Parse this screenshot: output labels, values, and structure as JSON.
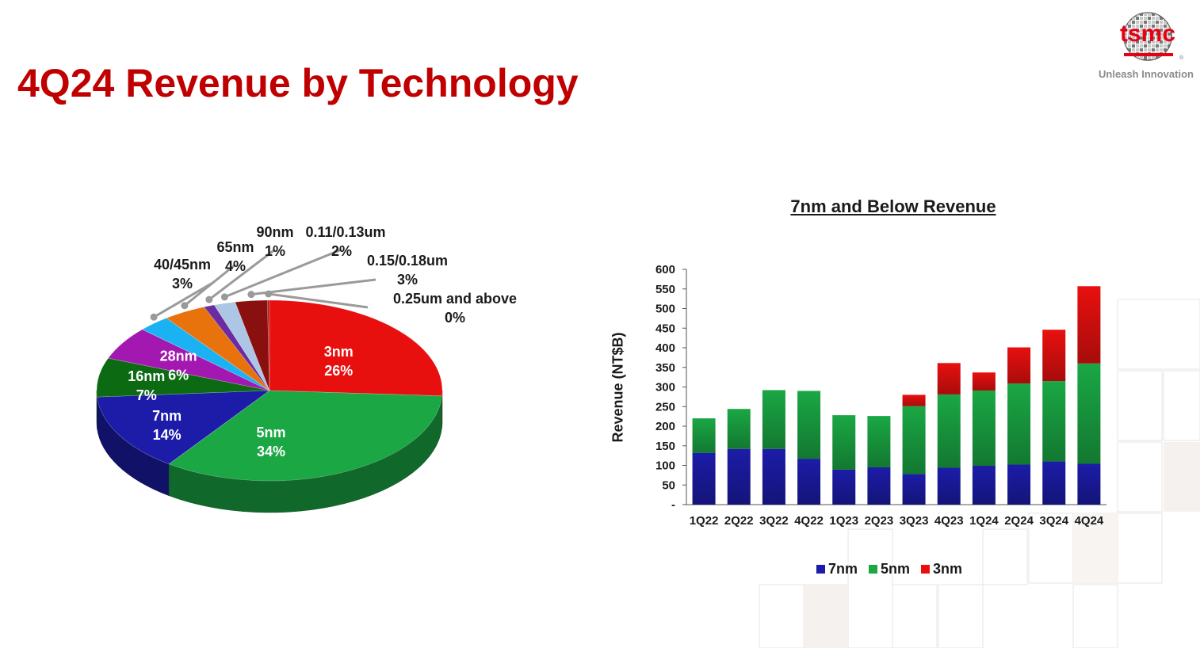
{
  "page": {
    "title": "4Q24 Revenue by Technology"
  },
  "logo": {
    "wordmark": "tsmc",
    "tagline": "Unleash Innovation",
    "color": "#e60012"
  },
  "chart_data": [
    {
      "type": "pie",
      "slices": [
        {
          "name": "3nm",
          "value": 26,
          "label": "26%",
          "color": "#e8100f"
        },
        {
          "name": "5nm",
          "value": 34,
          "label": "34%",
          "color": "#1aa744"
        },
        {
          "name": "7nm",
          "value": 14,
          "label": "14%",
          "color": "#1c1ca8"
        },
        {
          "name": "16nm",
          "value": 7,
          "label": "7%",
          "color": "#0b6a12"
        },
        {
          "name": "28nm",
          "value": 6,
          "label": "6%",
          "color": "#a318b0"
        },
        {
          "name": "40/45nm",
          "value": 3,
          "label": "3%",
          "color": "#1ab2f2"
        },
        {
          "name": "65nm",
          "value": 4,
          "label": "4%",
          "color": "#e8730c"
        },
        {
          "name": "90nm",
          "value": 1,
          "label": "1%",
          "color": "#6a2ca0"
        },
        {
          "name": "0.11/0.13um",
          "value": 2,
          "label": "2%",
          "color": "#aec6e6"
        },
        {
          "name": "0.15/0.18um",
          "value": 3,
          "label": "3%",
          "color": "#8a1010"
        },
        {
          "name": "0.25um and above",
          "value": 0,
          "label": "0%",
          "color": "#b52020"
        }
      ]
    },
    {
      "type": "bar",
      "stacked": true,
      "title": "7nm and Below Revenue",
      "ylabel": "Revenue (NT$B)",
      "ylim": [
        0,
        600
      ],
      "yticks": [
        "-",
        "50",
        "100",
        "150",
        "200",
        "250",
        "300",
        "350",
        "400",
        "450",
        "500",
        "550",
        "600"
      ],
      "categories": [
        "1Q22",
        "2Q22",
        "3Q22",
        "4Q22",
        "1Q23",
        "2Q23",
        "3Q23",
        "4Q23",
        "1Q24",
        "2Q24",
        "3Q24",
        "4Q24"
      ],
      "series": [
        {
          "name": "7nm",
          "color": "#1c1ca8",
          "values": [
            132,
            142,
            142,
            117,
            89,
            95,
            78,
            94,
            99,
            102,
            110,
            104
          ]
        },
        {
          "name": "5nm",
          "color": "#1aa744",
          "values": [
            88,
            102,
            150,
            173,
            139,
            131,
            173,
            187,
            192,
            207,
            205,
            256
          ]
        },
        {
          "name": "3nm",
          "color": "#e8100f",
          "values": [
            0,
            0,
            0,
            0,
            0,
            0,
            29,
            80,
            46,
            92,
            131,
            197
          ]
        }
      ],
      "legend_position": "bottom"
    }
  ]
}
